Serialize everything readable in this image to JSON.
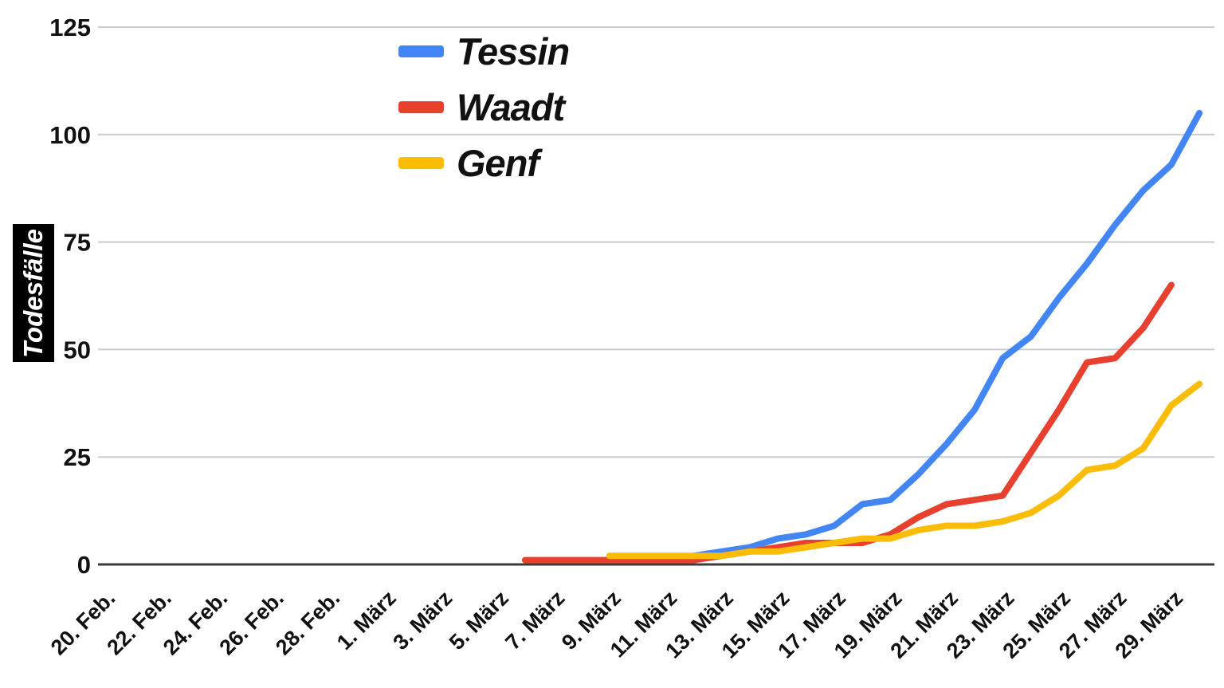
{
  "chart_data": {
    "type": "line",
    "title": "",
    "ylabel": "Todesfälle",
    "xlabel": "",
    "ylim": [
      0,
      125
    ],
    "yticks": [
      0,
      25,
      50,
      75,
      100,
      125
    ],
    "grid": "horizontal",
    "legend_position": "top-left-inside",
    "x_tick_every": 2,
    "x": [
      "20. Feb.",
      "21. Feb.",
      "22. Feb.",
      "23. Feb.",
      "24. Feb.",
      "25. Feb.",
      "26. Feb.",
      "27. Feb.",
      "28. Feb.",
      "29. Feb.",
      "1. März",
      "2. März",
      "3. März",
      "4. März",
      "5. März",
      "6. März",
      "7. März",
      "8. März",
      "9. März",
      "10. März",
      "11. März",
      "12. März",
      "13. März",
      "14. März",
      "15. März",
      "16. März",
      "17. März",
      "18. März",
      "19. März",
      "20. März",
      "21. März",
      "22. März",
      "23. März",
      "24. März",
      "25. März",
      "26. März",
      "27. März",
      "28. März",
      "29. März",
      "30. März"
    ],
    "series": [
      {
        "name": "Tessin",
        "color": "#4285F4",
        "values": [
          null,
          null,
          null,
          null,
          null,
          null,
          null,
          null,
          null,
          null,
          null,
          null,
          null,
          null,
          null,
          null,
          null,
          null,
          null,
          null,
          1,
          2,
          3,
          4,
          6,
          7,
          9,
          14,
          15,
          21,
          28,
          36,
          48,
          53,
          62,
          70,
          79,
          87,
          93,
          105
        ]
      },
      {
        "name": "Waadt",
        "color": "#E8402F",
        "values": [
          null,
          null,
          null,
          null,
          null,
          null,
          null,
          null,
          null,
          null,
          null,
          null,
          null,
          null,
          null,
          1,
          1,
          1,
          1,
          1,
          1,
          1,
          2,
          3,
          4,
          5,
          5,
          5,
          7,
          11,
          14,
          15,
          16,
          26,
          36,
          47,
          48,
          55,
          65,
          null
        ]
      },
      {
        "name": "Genf",
        "color": "#FBBC05",
        "values": [
          null,
          null,
          null,
          null,
          null,
          null,
          null,
          null,
          null,
          null,
          null,
          null,
          null,
          null,
          null,
          null,
          null,
          null,
          2,
          2,
          2,
          2,
          2,
          3,
          3,
          4,
          5,
          6,
          6,
          8,
          9,
          9,
          10,
          12,
          16,
          22,
          23,
          27,
          37,
          42
        ]
      }
    ]
  }
}
